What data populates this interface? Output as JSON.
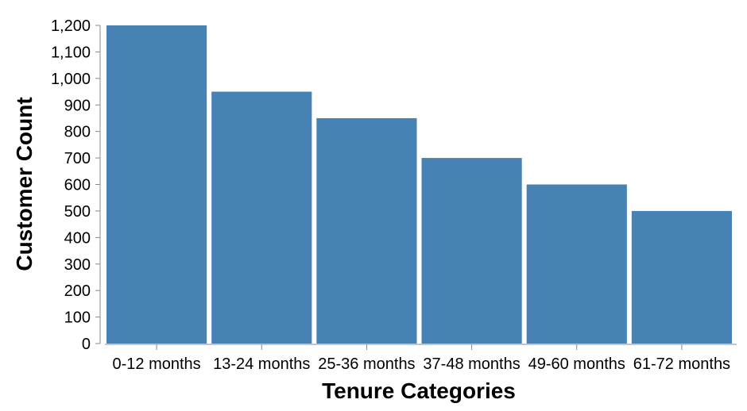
{
  "chart_data": {
    "type": "bar",
    "title": "",
    "xlabel": "Tenure Categories",
    "ylabel": "Customer Count",
    "categories": [
      "0-12 months",
      "13-24 months",
      "25-36 months",
      "37-48 months",
      "49-60 months",
      "61-72 months"
    ],
    "values": [
      1200,
      950,
      850,
      700,
      600,
      500
    ],
    "ylim": [
      0,
      1200
    ],
    "yticks": [
      0,
      100,
      200,
      300,
      400,
      500,
      600,
      700,
      800,
      900,
      1000,
      1100,
      1200
    ],
    "ytick_labels": [
      "0",
      "100",
      "200",
      "300",
      "400",
      "500",
      "600",
      "700",
      "800",
      "900",
      "1,000",
      "1,100",
      "1,200"
    ],
    "grid": false,
    "legend": "none",
    "bar_color": "#4682b4",
    "axis_color": "#888888"
  }
}
